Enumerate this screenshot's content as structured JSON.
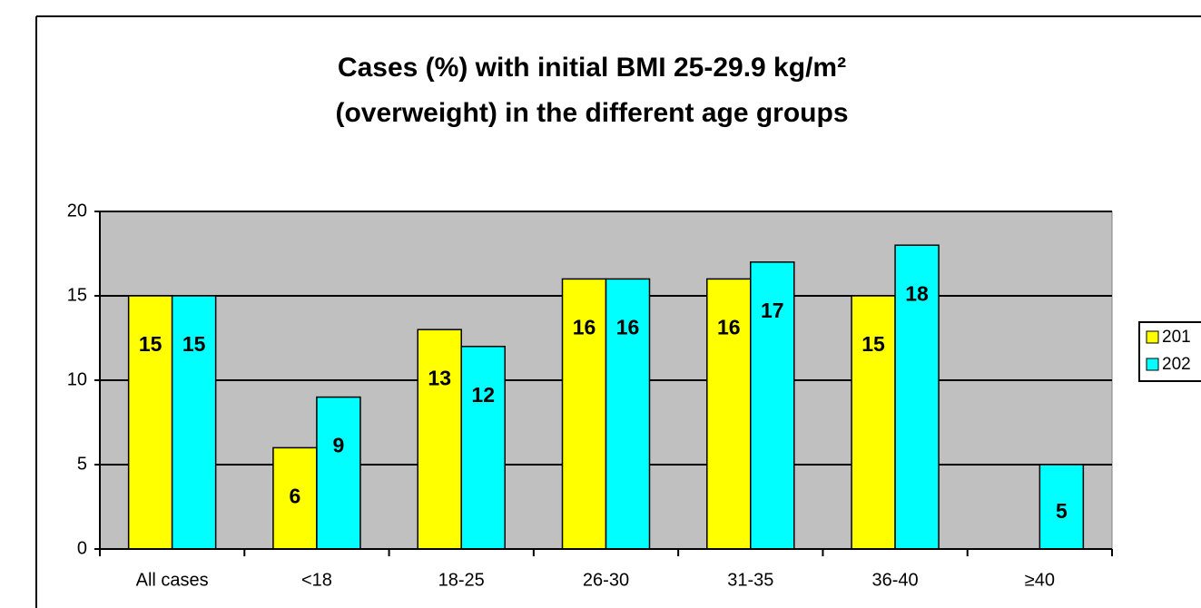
{
  "chart_data": {
    "type": "bar",
    "title": [
      "Cases (%) with initial BMI 25-29.9 kg/m²",
      "(overweight) in the different age groups"
    ],
    "categories": [
      "All cases",
      "<18",
      "18-25",
      "26-30",
      "31-35",
      "36-40",
      "≥40"
    ],
    "series": [
      {
        "name": "201",
        "color": "#ffff00",
        "values": [
          15,
          6,
          13,
          16,
          16,
          15,
          null
        ]
      },
      {
        "name": "202",
        "color": "#00ffff",
        "values": [
          15,
          9,
          12,
          16,
          17,
          18,
          5
        ]
      }
    ],
    "ylim": [
      0,
      20
    ],
    "yticks": [
      0,
      5,
      10,
      15,
      20
    ],
    "grid": true,
    "legend": "right"
  }
}
